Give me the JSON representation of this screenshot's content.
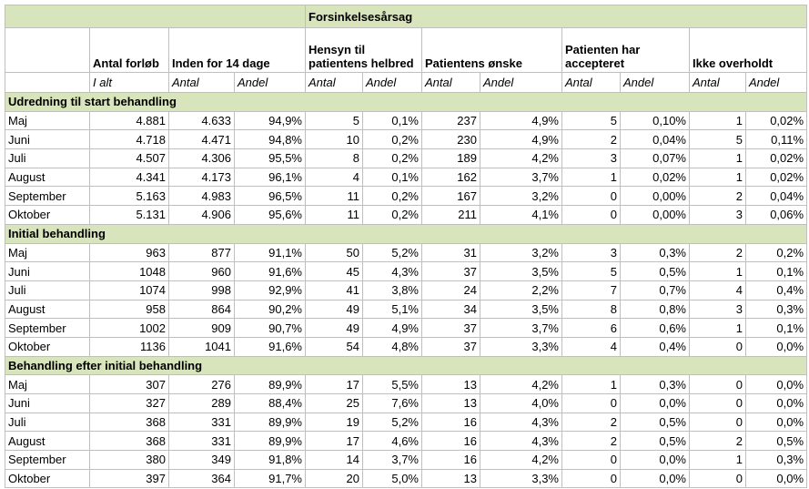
{
  "header": {
    "group": "Forsinkelsesårsag",
    "columns": [
      "Antal forløb",
      "Inden for 14 dage",
      "Hensyn til patientens helbred",
      "Patientens ønske",
      "Patienten har accepteret",
      "Ikke overholdt"
    ],
    "subcolumns": [
      "I alt",
      "Antal",
      "Andel",
      "Antal",
      "Andel",
      "Antal",
      "Andel",
      "Antal",
      "Andel",
      "Antal",
      "Andel"
    ]
  },
  "sections": [
    {
      "title": "Udredning til start behandling",
      "rows": [
        [
          "Maj",
          "4.881",
          "4.633",
          "94,9%",
          "5",
          "0,1%",
          "237",
          "4,9%",
          "5",
          "0,10%",
          "1",
          "0,02%"
        ],
        [
          "Juni",
          "4.718",
          "4.471",
          "94,8%",
          "10",
          "0,2%",
          "230",
          "4,9%",
          "2",
          "0,04%",
          "5",
          "0,11%"
        ],
        [
          "Juli",
          "4.507",
          "4.306",
          "95,5%",
          "8",
          "0,2%",
          "189",
          "4,2%",
          "3",
          "0,07%",
          "1",
          "0,02%"
        ],
        [
          "August",
          "4.341",
          "4.173",
          "96,1%",
          "4",
          "0,1%",
          "162",
          "3,7%",
          "1",
          "0,02%",
          "1",
          "0,02%"
        ],
        [
          "September",
          "5.163",
          "4.983",
          "96,5%",
          "11",
          "0,2%",
          "167",
          "3,2%",
          "0",
          "0,00%",
          "2",
          "0,04%"
        ],
        [
          "Oktober",
          "5.131",
          "4.906",
          "95,6%",
          "11",
          "0,2%",
          "211",
          "4,1%",
          "0",
          "0,00%",
          "3",
          "0,06%"
        ]
      ]
    },
    {
      "title": "Initial behandling",
      "rows": [
        [
          "Maj",
          "963",
          "877",
          "91,1%",
          "50",
          "5,2%",
          "31",
          "3,2%",
          "3",
          "0,3%",
          "2",
          "0,2%"
        ],
        [
          "Juni",
          "1048",
          "960",
          "91,6%",
          "45",
          "4,3%",
          "37",
          "3,5%",
          "5",
          "0,5%",
          "1",
          "0,1%"
        ],
        [
          "Juli",
          "1074",
          "998",
          "92,9%",
          "41",
          "3,8%",
          "24",
          "2,2%",
          "7",
          "0,7%",
          "4",
          "0,4%"
        ],
        [
          "August",
          "958",
          "864",
          "90,2%",
          "49",
          "5,1%",
          "34",
          "3,5%",
          "8",
          "0,8%",
          "3",
          "0,3%"
        ],
        [
          "September",
          "1002",
          "909",
          "90,7%",
          "49",
          "4,9%",
          "37",
          "3,7%",
          "6",
          "0,6%",
          "1",
          "0,1%"
        ],
        [
          "Oktober",
          "1136",
          "1041",
          "91,6%",
          "54",
          "4,8%",
          "37",
          "3,3%",
          "4",
          "0,4%",
          "0",
          "0,0%"
        ]
      ]
    },
    {
      "title": "Behandling efter initial behandling",
      "rows": [
        [
          "Maj",
          "307",
          "276",
          "89,9%",
          "17",
          "5,5%",
          "13",
          "4,2%",
          "1",
          "0,3%",
          "0",
          "0,0%"
        ],
        [
          "Juni",
          "327",
          "289",
          "88,4%",
          "25",
          "7,6%",
          "13",
          "4,0%",
          "0",
          "0,0%",
          "0",
          "0,0%"
        ],
        [
          "Juli",
          "368",
          "331",
          "89,9%",
          "19",
          "5,2%",
          "16",
          "4,3%",
          "2",
          "0,5%",
          "0",
          "0,0%"
        ],
        [
          "August",
          "368",
          "331",
          "89,9%",
          "17",
          "4,6%",
          "16",
          "4,3%",
          "2",
          "0,5%",
          "2",
          "0,5%"
        ],
        [
          "September",
          "380",
          "349",
          "91,8%",
          "14",
          "3,7%",
          "16",
          "4,2%",
          "0",
          "0,0%",
          "1",
          "0,3%"
        ],
        [
          "Oktober",
          "397",
          "364",
          "91,7%",
          "20",
          "5,0%",
          "13",
          "3,3%",
          "0",
          "0,0%",
          "0",
          "0,0%"
        ]
      ]
    }
  ]
}
